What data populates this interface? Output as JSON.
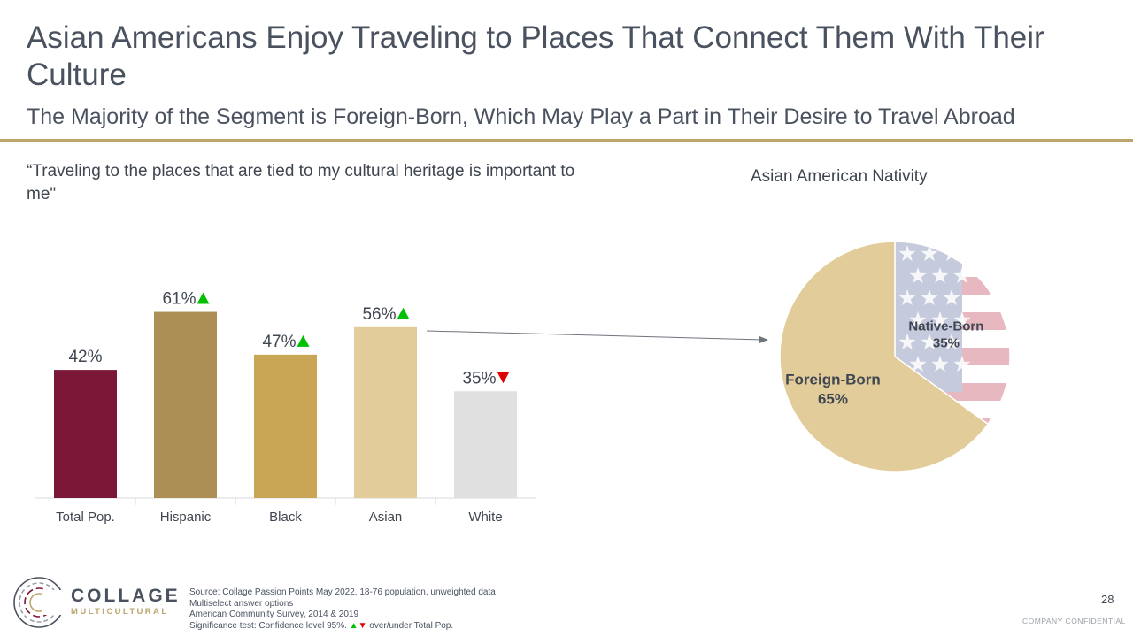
{
  "header": {
    "title": "Asian Americans Enjoy Traveling to Places That Connect Them With Their Culture",
    "subtitle": "The Majority of the Segment is Foreign-Born, Which May Play a Part in Their Desire to Travel Abroad"
  },
  "quote": "“Traveling to the places that are tied to my cultural heritage is important to me\"",
  "chart_data": [
    {
      "type": "bar",
      "title": "“Traveling to the places that are tied to my cultural heritage is important to me\"",
      "categories": [
        "Total Pop.",
        "Hispanic",
        "Black",
        "Asian",
        "White"
      ],
      "values": [
        42,
        61,
        47,
        56,
        35
      ],
      "value_labels": [
        "42%",
        "61%",
        "47%",
        "56%",
        "35%"
      ],
      "significance": [
        "",
        "up",
        "up",
        "up",
        "down"
      ],
      "colors": [
        "#7b1838",
        "#ab8f55",
        "#c9a655",
        "#e2cc9a",
        "#e0e0e0"
      ],
      "ylim": [
        0,
        70
      ],
      "grid": false,
      "legend": "none"
    },
    {
      "type": "pie",
      "title": "Asian American Nativity",
      "slices": [
        {
          "label": "Native-Born",
          "value": 35,
          "value_label": "35%",
          "fill": "flag"
        },
        {
          "label": "Foreign-Born",
          "value": 65,
          "value_label": "65%",
          "fill": "#e2cc9a"
        }
      ]
    }
  ],
  "colors": {
    "accent_rule": "#bca66e",
    "text": "#4a5260",
    "sig_up": "#00c000",
    "sig_down": "#e00000"
  },
  "logo": {
    "word1": "COLLAGE",
    "word2": "MULTICULTURAL"
  },
  "footer": {
    "source_lines": [
      "Source: Collage Passion Points May 2022, 18-76 population, unweighted data",
      "Multiselect answer options",
      "American Community Survey, 2014 & 2019"
    ],
    "sig_prefix": "Significance test: Confidence level 95%.",
    "sig_up_glyph": "▲",
    "sig_down_glyph": "▼",
    "sig_suffix": "over/under Total Pop.",
    "page_number": "28",
    "confidential": "COMPANY CONFIDENTIAL"
  }
}
